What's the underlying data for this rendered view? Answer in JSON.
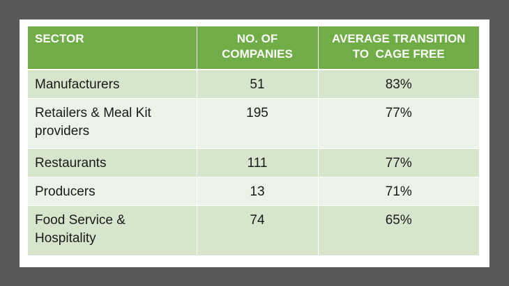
{
  "table": {
    "headers": [
      "SECTOR",
      "NO. OF COMPANIES",
      "AVERAGE TRANSITION TO  CAGE FREE"
    ],
    "header_lines": [
      [
        "SECTOR"
      ],
      [
        "NO. OF",
        "COMPANIES"
      ],
      [
        "AVERAGE TRANSITION",
        "TO  CAGE FREE"
      ]
    ],
    "rows": [
      {
        "sector": "Manufacturers",
        "sector_lines": [
          "Manufacturers"
        ],
        "companies": "51",
        "transition": "83%"
      },
      {
        "sector": "Retailers & Meal Kit providers",
        "sector_lines": [
          "Retailers & Meal Kit",
          "providers"
        ],
        "companies": "195",
        "transition": "77%"
      },
      {
        "sector": "Restaurants",
        "sector_lines": [
          "Restaurants"
        ],
        "companies": "111",
        "transition": "77%"
      },
      {
        "sector": "Producers",
        "sector_lines": [
          "Producers"
        ],
        "companies": "13",
        "transition": "71%"
      },
      {
        "sector": "Food Service & Hospitality",
        "sector_lines": [
          "Food Service &",
          "Hospitality"
        ],
        "companies": "74",
        "transition": "65%"
      }
    ]
  },
  "colors": {
    "frame": "#595959",
    "header_bg": "#70ad47",
    "row_odd": "#d5e6cc",
    "row_even": "#ebf2e7"
  }
}
